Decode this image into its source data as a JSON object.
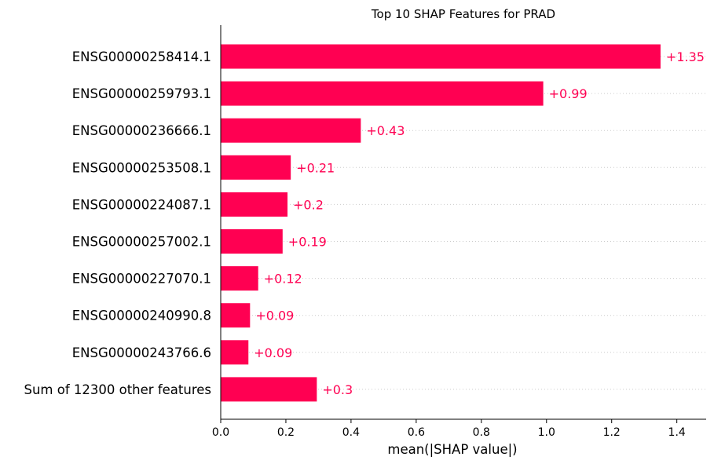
{
  "chart_data": {
    "type": "bar",
    "orientation": "horizontal",
    "title": "Top 10 SHAP Features for PRAD",
    "xlabel": "mean(|SHAP value|)",
    "ylabel": "",
    "xlim": [
      0,
      1.49
    ],
    "xticks": [
      0.0,
      0.2,
      0.4,
      0.6,
      0.8,
      1.0,
      1.2,
      1.4
    ],
    "xtick_labels": [
      "0.0",
      "0.2",
      "0.4",
      "0.6",
      "0.8",
      "1.0",
      "1.2",
      "1.4"
    ],
    "grid": "dotted horizontal lines per row",
    "categories": [
      "ENSG00000258414.1",
      "ENSG00000259793.1",
      "ENSG00000236666.1",
      "ENSG00000253508.1",
      "ENSG00000224087.1",
      "ENSG00000257002.1",
      "ENSG00000227070.1",
      "ENSG00000240990.8",
      "ENSG00000243766.6",
      "Sum of 12300 other features"
    ],
    "values": [
      1.35,
      0.99,
      0.43,
      0.21,
      0.2,
      0.19,
      0.12,
      0.09,
      0.09,
      0.3
    ],
    "bar_value_positions": [
      1.35,
      0.99,
      0.43,
      0.215,
      0.205,
      0.19,
      0.115,
      0.09,
      0.085,
      0.295
    ],
    "value_labels": [
      "+1.35",
      "+0.99",
      "+0.43",
      "+0.21",
      "+0.2",
      "+0.19",
      "+0.12",
      "+0.09",
      "+0.09",
      "+0.3"
    ],
    "colors": {
      "bar": "#ff0052",
      "label": "#ff0052",
      "grid": "#cccccc",
      "axis": "#000000"
    }
  }
}
